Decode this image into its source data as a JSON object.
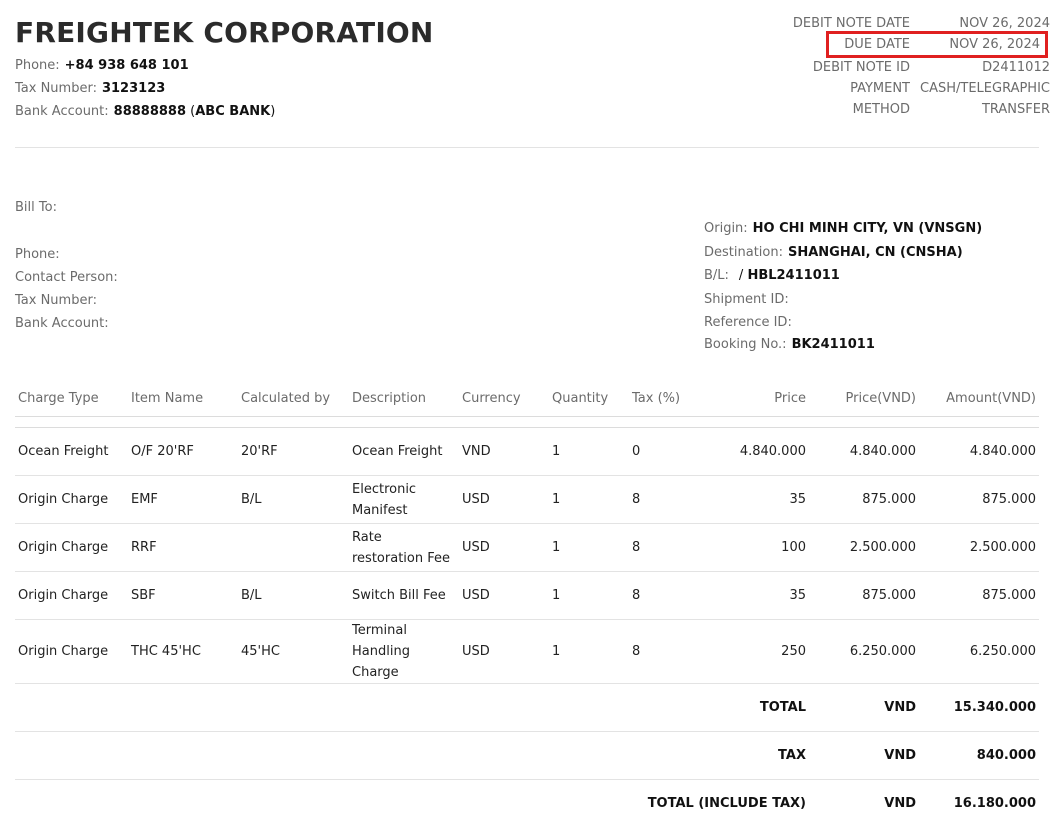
{
  "company": {
    "name": "FREIGHTEK CORPORATION",
    "phone_label": "Phone:",
    "phone": "+84 938 648 101",
    "tax_label": "Tax Number:",
    "tax_number": "3123123",
    "bank_label": "Bank Account:",
    "bank_account": "88888888",
    "bank_name": "ABC BANK"
  },
  "meta": [
    {
      "label": "DEBIT NOTE DATE",
      "value": "NOV 26, 2024"
    },
    {
      "label": "DUE DATE",
      "value": "NOV 26, 2024"
    },
    {
      "label": "DEBIT NOTE ID",
      "value": "D2411012"
    },
    {
      "label": "PAYMENT METHOD",
      "label_lines": [
        "PAYMENT",
        "METHOD"
      ],
      "value_lines": [
        "CASH/TELEGRAPHIC",
        "TRANSFER"
      ]
    }
  ],
  "bill_to": {
    "bill_to_label": "Bill To:",
    "phone_label": "Phone:",
    "contact_label": "Contact Person:",
    "tax_label": "Tax Number:",
    "bank_label": "Bank Account:"
  },
  "shipment": {
    "origin_label": "Origin:",
    "origin": "HO CHI MINH CITY, VN (VNSGN)",
    "destination_label": "Destination:",
    "destination": "SHANGHAI, CN (CNSHA)",
    "bl_label": "B/L:",
    "bl_value": "HBL2411011",
    "shipment_id_label": "Shipment ID:",
    "reference_id_label": "Reference ID:",
    "booking_label": "Booking No.:",
    "booking_no": "BK2411011"
  },
  "table": {
    "headers": [
      "Charge Type",
      "Item Name",
      "Calculated by",
      "Description",
      "Currency",
      "Quantity",
      "Tax (%)",
      "Price",
      "Price(VND)",
      "Amount(VND)"
    ],
    "rows": [
      [
        "Ocean Freight",
        "O/F 20'RF",
        "20'RF",
        "Ocean Freight",
        "VND",
        "1",
        "0",
        "4.840.000",
        "4.840.000",
        "4.840.000"
      ],
      [
        "Origin Charge",
        "EMF",
        "B/L",
        "Electronic Manifest",
        "USD",
        "1",
        "8",
        "35",
        "875.000",
        "875.000"
      ],
      [
        "Origin Charge",
        "RRF",
        "",
        "Rate restoration Fee",
        "USD",
        "1",
        "8",
        "100",
        "2.500.000",
        "2.500.000"
      ],
      [
        "Origin Charge",
        "SBF",
        "B/L",
        "Switch Bill Fee",
        "USD",
        "1",
        "8",
        "35",
        "875.000",
        "875.000"
      ],
      [
        "Origin Charge",
        "THC 45'HC",
        "45'HC",
        "Terminal Handling Charge",
        "USD",
        "1",
        "8",
        "250",
        "6.250.000",
        "6.250.000"
      ]
    ]
  },
  "summary": [
    {
      "label": "TOTAL",
      "currency": "VND",
      "amount": "15.340.000"
    },
    {
      "label": "TAX",
      "currency": "VND",
      "amount": "840.000"
    },
    {
      "label": "TOTAL (INCLUDE TAX)",
      "currency": "VND",
      "amount": "16.180.000"
    }
  ]
}
